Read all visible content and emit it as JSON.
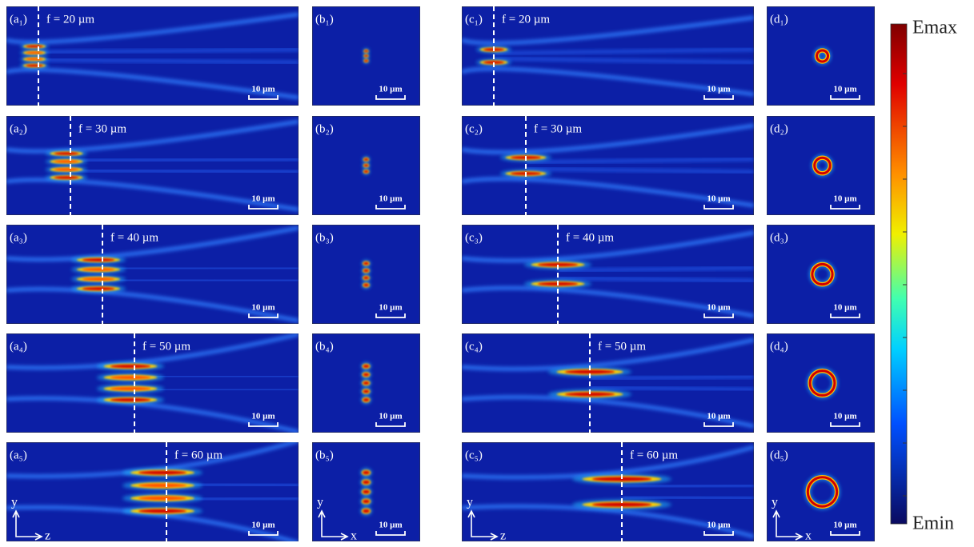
{
  "rows": [
    {
      "a": {
        "label": "(a₁)",
        "focus": "f = 20 µm",
        "scale_bar": "10 µm"
      },
      "b": {
        "label": "(b₁)",
        "scale_bar": "10 µm"
      },
      "c": {
        "label": "(c₁)",
        "focus": "f = 20 µm",
        "scale_bar": "10 µm"
      },
      "d": {
        "label": "(d₁)",
        "scale_bar": "10 µm"
      }
    },
    {
      "a": {
        "label": "(a₂)",
        "focus": "f = 30 µm",
        "scale_bar": "10 µm"
      },
      "b": {
        "label": "(b₂)",
        "scale_bar": "10 µm"
      },
      "c": {
        "label": "(c₂)",
        "focus": "f = 30 µm",
        "scale_bar": "10 µm"
      },
      "d": {
        "label": "(d₂)",
        "scale_bar": "10 µm"
      }
    },
    {
      "a": {
        "label": "(a₃)",
        "focus": "f = 40 µm",
        "scale_bar": "10 µm"
      },
      "b": {
        "label": "(b₃)",
        "scale_bar": "10 µm"
      },
      "c": {
        "label": "(c₃)",
        "focus": "f = 40 µm",
        "scale_bar": "10 µm"
      },
      "d": {
        "label": "(d₃)",
        "scale_bar": "10 µm"
      }
    },
    {
      "a": {
        "label": "(a₄)",
        "focus": "f = 50 µm",
        "scale_bar": "10 µm"
      },
      "b": {
        "label": "(b₄)",
        "scale_bar": "10 µm"
      },
      "c": {
        "label": "(c₄)",
        "focus": "f = 50 µm",
        "scale_bar": "10 µm"
      },
      "d": {
        "label": "(d₄)",
        "scale_bar": "10 µm"
      }
    },
    {
      "a": {
        "label": "(a₅)",
        "focus": "f = 60 µm",
        "scale_bar": "10 µm",
        "axis_vertical": "y",
        "axis_horizontal": "z"
      },
      "b": {
        "label": "(b₅)",
        "scale_bar": "10 µm",
        "axis_vertical": "y",
        "axis_horizontal": "x"
      },
      "c": {
        "label": "(c₅)",
        "focus": "f = 60 µm",
        "scale_bar": "10 µm",
        "axis_vertical": "y",
        "axis_horizontal": "z"
      },
      "d": {
        "label": "(d₅)",
        "scale_bar": "10 µm",
        "axis_vertical": "y",
        "axis_horizontal": "x"
      }
    }
  ],
  "colorbar": {
    "max": "Emax",
    "min": "Emin"
  }
}
